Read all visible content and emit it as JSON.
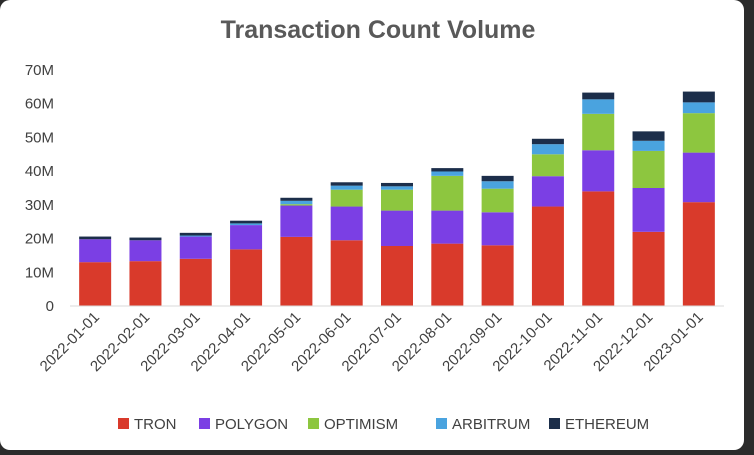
{
  "chart_data": {
    "type": "bar",
    "stacked": true,
    "title": "Transaction Count Volume",
    "xlabel": "",
    "ylabel": "",
    "ylim": [
      0,
      70000000
    ],
    "yticks": [
      0,
      10000000,
      20000000,
      30000000,
      40000000,
      50000000,
      60000000,
      70000000
    ],
    "ytick_labels": [
      "0",
      "10M",
      "20M",
      "30M",
      "40M",
      "50M",
      "60M",
      "70M"
    ],
    "grid": false,
    "legend_position": "bottom",
    "categories": [
      "2022-01-01",
      "2022-02-01",
      "2022-03-01",
      "2022-04-01",
      "2022-05-01",
      "2022-06-01",
      "2022-07-01",
      "2022-08-01",
      "2022-09-01",
      "2022-10-01",
      "2022-11-01",
      "2022-12-01",
      "2023-01-01"
    ],
    "series": [
      {
        "name": "TRON",
        "color": "#d93a2b",
        "values": [
          13000000,
          13300000,
          14000000,
          16800000,
          20500000,
          19500000,
          17800000,
          18500000,
          18000000,
          29500000,
          34000000,
          22000000,
          30800000
        ]
      },
      {
        "name": "POLYGON",
        "color": "#7b3fe4",
        "values": [
          6800000,
          6200000,
          6600000,
          7200000,
          9300000,
          10000000,
          10500000,
          9800000,
          9800000,
          9000000,
          12200000,
          13000000,
          14700000
        ]
      },
      {
        "name": "OPTIMISM",
        "color": "#8dc63f",
        "values": [
          0,
          0,
          0,
          0,
          400000,
          5000000,
          6200000,
          10300000,
          7000000,
          6500000,
          10800000,
          11000000,
          11700000
        ]
      },
      {
        "name": "ARBITRUM",
        "color": "#4aa3df",
        "values": [
          0,
          0,
          300000,
          500000,
          1000000,
          1200000,
          1000000,
          1300000,
          2200000,
          3000000,
          4300000,
          3000000,
          3200000
        ]
      },
      {
        "name": "ETHEREUM",
        "color": "#1c2e4a",
        "values": [
          800000,
          800000,
          800000,
          800000,
          900000,
          1000000,
          1000000,
          1000000,
          1600000,
          1600000,
          2000000,
          2800000,
          3200000
        ]
      }
    ]
  }
}
